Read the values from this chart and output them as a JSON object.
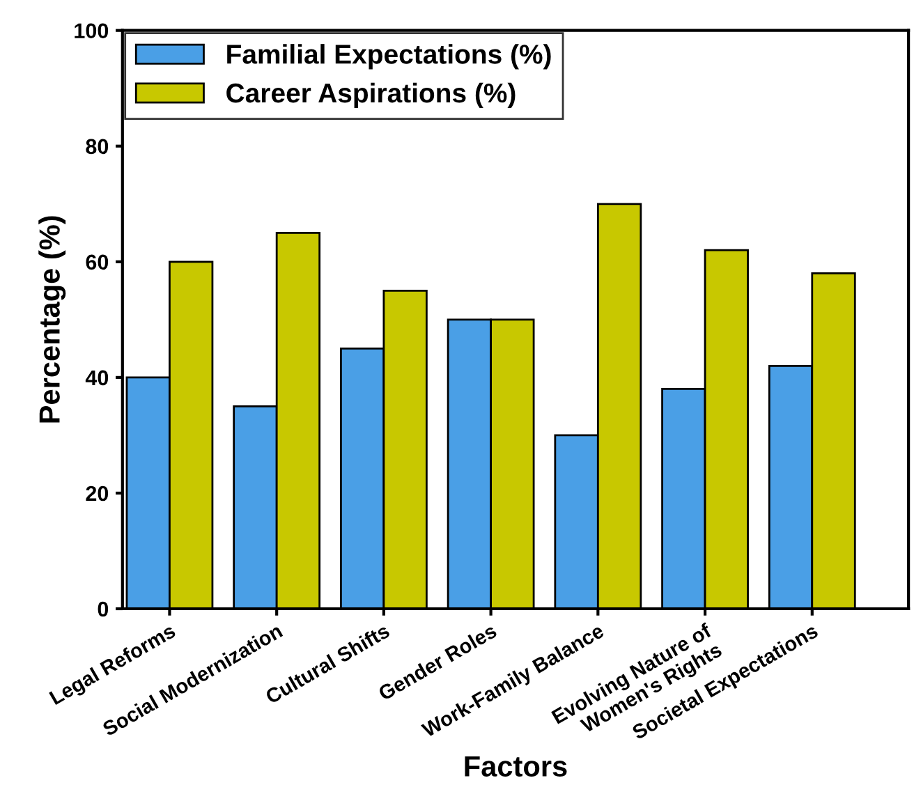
{
  "chart_data": {
    "type": "bar",
    "xlabel": "Factors",
    "ylabel": "Percentage (%)",
    "categories": [
      "Legal Reforms",
      "Social Modernization",
      "Cultural Shifts",
      "Gender Roles",
      "Work-Family Balance",
      "Evolving Nature of\nWomen's Rights",
      "Societal Expectations"
    ],
    "series": [
      {
        "name": "Familial Expectations (%)",
        "color": "#4a9fe6",
        "values": [
          40,
          35,
          45,
          50,
          30,
          38,
          42
        ]
      },
      {
        "name": "Career Aspirations (%)",
        "color": "#c8c800",
        "values": [
          60,
          65,
          55,
          50,
          70,
          62,
          58
        ]
      }
    ],
    "ylim": [
      0,
      100
    ],
    "yticks": [
      0,
      20,
      40,
      60,
      80,
      100
    ],
    "grid": false,
    "legend": "top left"
  }
}
